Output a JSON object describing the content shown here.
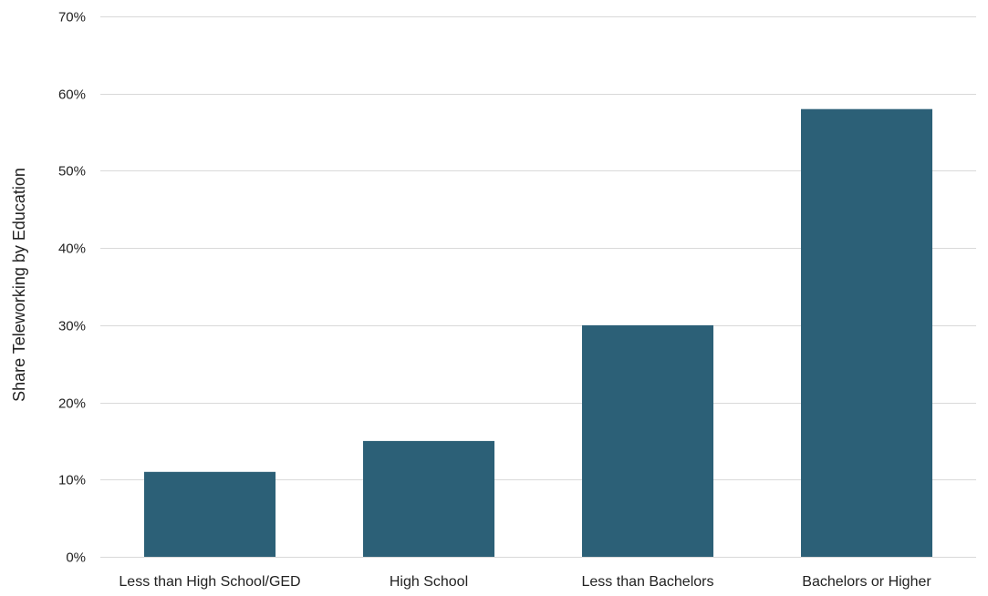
{
  "chart_data": {
    "type": "bar",
    "title": "",
    "xlabel": "",
    "ylabel": "Share Teleworking by Education",
    "categories": [
      "Less than High School/GED",
      "High School",
      "Less than Bachelors",
      "Bachelors or Higher"
    ],
    "values": [
      11,
      15,
      30,
      58
    ],
    "ylim": [
      0,
      70
    ],
    "yticks": [
      0,
      10,
      20,
      30,
      40,
      50,
      60,
      70
    ],
    "ytick_labels": [
      "0%",
      "10%",
      "20%",
      "30%",
      "40%",
      "50%",
      "60%",
      "70%"
    ],
    "grid": true,
    "legend": "none",
    "colors": {
      "bar": "#2c6077",
      "grid": "#d9d9d9",
      "text": "#222222"
    }
  }
}
